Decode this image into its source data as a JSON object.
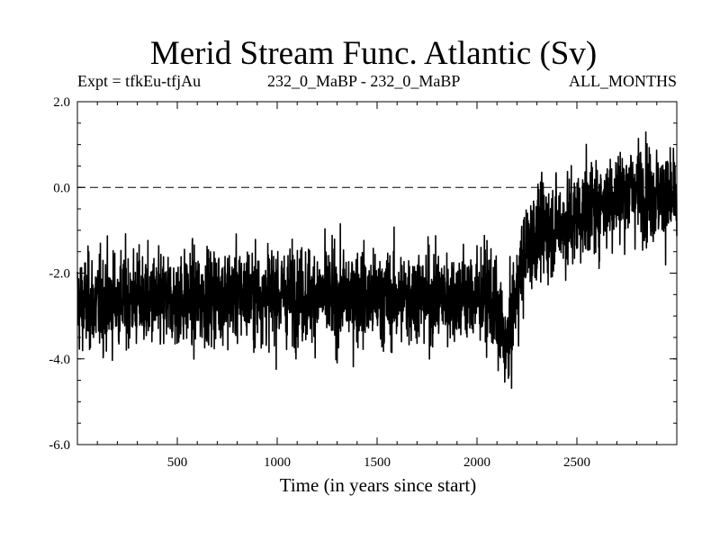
{
  "chart_data": {
    "type": "line",
    "title": "Merid Stream Func. Atlantic (Sv)",
    "subtitle_left": "Expt = tfkEu-tfjAu",
    "subtitle_center": "232_0_MaBP - 232_0_MaBP",
    "subtitle_right": "ALL_MONTHS",
    "xlabel": "Time (in years since start)",
    "ylabel": "",
    "xlim": [
      0,
      3000
    ],
    "ylim": [
      -6.0,
      2.0
    ],
    "x_ticks": [
      500,
      1000,
      1500,
      2000,
      2500
    ],
    "y_ticks": [
      2.0,
      0.0,
      -2.0,
      -4.0,
      -6.0
    ],
    "y_tick_labels": [
      "2.0",
      "0.0",
      "-2.0",
      "-4.0",
      "-6.0"
    ],
    "reference_line": {
      "y": 0.0,
      "style": "dashed"
    },
    "grid": false,
    "legend": "none",
    "line_color": "#000000",
    "series": [
      {
        "x": [
          0,
          100,
          200,
          300,
          400,
          500,
          600,
          700,
          800,
          900,
          1000,
          1100,
          1200,
          1300,
          1400,
          1500,
          1600,
          1700,
          1800,
          1900,
          2000,
          2050,
          2100,
          2150,
          2200,
          2250,
          2300,
          2400,
          2500,
          2600,
          2700,
          2800,
          2900,
          3000
        ],
        "values": [
          -2.7,
          -2.7,
          -2.6,
          -2.6,
          -2.7,
          -2.6,
          -2.6,
          -2.5,
          -2.5,
          -2.5,
          -2.5,
          -2.5,
          -2.5,
          -2.6,
          -2.5,
          -2.6,
          -2.6,
          -2.5,
          -2.6,
          -2.5,
          -2.6,
          -2.5,
          -3.0,
          -3.8,
          -2.4,
          -1.4,
          -1.1,
          -0.9,
          -0.7,
          -0.4,
          -0.2,
          0.0,
          -0.2,
          -0.3
        ]
      }
    ]
  }
}
